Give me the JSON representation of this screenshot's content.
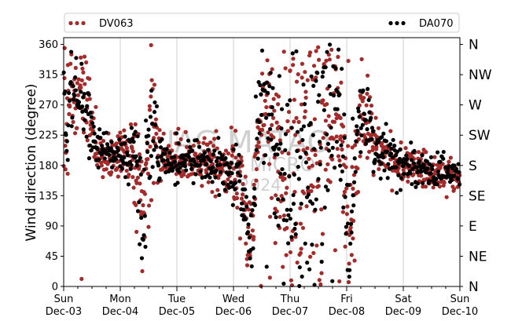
{
  "chart_data": {
    "type": "scatter",
    "title": "",
    "ylabel": "Wind direction (degree)",
    "xlabel": "",
    "ylim": [
      0,
      370
    ],
    "yticks": [
      0,
      45,
      90,
      135,
      180,
      225,
      270,
      315,
      360
    ],
    "xlim_days": [
      0,
      7
    ],
    "xticks": [
      {
        "day": 0,
        "top": "Sun",
        "bottom": "Dec-03"
      },
      {
        "day": 1,
        "top": "Mon",
        "bottom": "Dec-04"
      },
      {
        "day": 2,
        "top": "Tue",
        "bottom": "Dec-05"
      },
      {
        "day": 3,
        "top": "Wed",
        "bottom": "Dec-06"
      },
      {
        "day": 4,
        "top": "Thu",
        "bottom": "Dec-07"
      },
      {
        "day": 5,
        "top": "Fri",
        "bottom": "Dec-08"
      },
      {
        "day": 6,
        "top": "Sat",
        "bottom": "Dec-09"
      },
      {
        "day": 7,
        "top": "Sun",
        "bottom": "Dec-10"
      }
    ],
    "compass": [
      {
        "deg": 0,
        "label": "N"
      },
      {
        "deg": 45,
        "label": "NE"
      },
      {
        "deg": 90,
        "label": "E"
      },
      {
        "deg": 135,
        "label": "SE"
      },
      {
        "deg": 180,
        "label": "S"
      },
      {
        "deg": 225,
        "label": "SW"
      },
      {
        "deg": 270,
        "label": "W"
      },
      {
        "deg": 315,
        "label": "NW"
      },
      {
        "deg": 360,
        "label": "N"
      }
    ],
    "grid": "vertical",
    "legend": "top",
    "series": [
      {
        "name": "DV063",
        "color": "#a52a2a",
        "seed": 7
      },
      {
        "name": "DA070",
        "color": "#000000",
        "seed": 19
      }
    ],
    "profile": [
      {
        "t": 0.0,
        "c": 200,
        "s": 70
      },
      {
        "t": 0.1,
        "c": 280,
        "s": 35
      },
      {
        "t": 0.3,
        "c": 290,
        "s": 30
      },
      {
        "t": 0.45,
        "c": 270,
        "s": 40
      },
      {
        "t": 0.55,
        "c": 200,
        "s": 18
      },
      {
        "t": 1.0,
        "c": 195,
        "s": 15
      },
      {
        "t": 1.25,
        "c": 190,
        "s": 30
      },
      {
        "t": 1.4,
        "c": 110,
        "s": 45
      },
      {
        "t": 1.55,
        "c": 250,
        "s": 60
      },
      {
        "t": 1.75,
        "c": 190,
        "s": 15
      },
      {
        "t": 2.5,
        "c": 185,
        "s": 15
      },
      {
        "t": 2.8,
        "c": 175,
        "s": 20
      },
      {
        "t": 3.1,
        "c": 170,
        "s": 30
      },
      {
        "t": 3.3,
        "c": 60,
        "s": 25
      },
      {
        "t": 3.5,
        "c": 300,
        "s": 45
      },
      {
        "t": 3.75,
        "c": 230,
        "s": 80
      },
      {
        "t": 4.0,
        "c": 200,
        "s": 120
      },
      {
        "t": 4.5,
        "c": 230,
        "s": 110
      },
      {
        "t": 4.85,
        "c": 270,
        "s": 50
      },
      {
        "t": 5.05,
        "c": 80,
        "s": 50
      },
      {
        "t": 5.25,
        "c": 270,
        "s": 40
      },
      {
        "t": 5.5,
        "c": 210,
        "s": 20
      },
      {
        "t": 6.0,
        "c": 180,
        "s": 15
      },
      {
        "t": 7.0,
        "c": 165,
        "s": 12
      }
    ],
    "watermark": [
      "JAG MATAO",
      "LAB MICRO",
      "2024"
    ]
  }
}
